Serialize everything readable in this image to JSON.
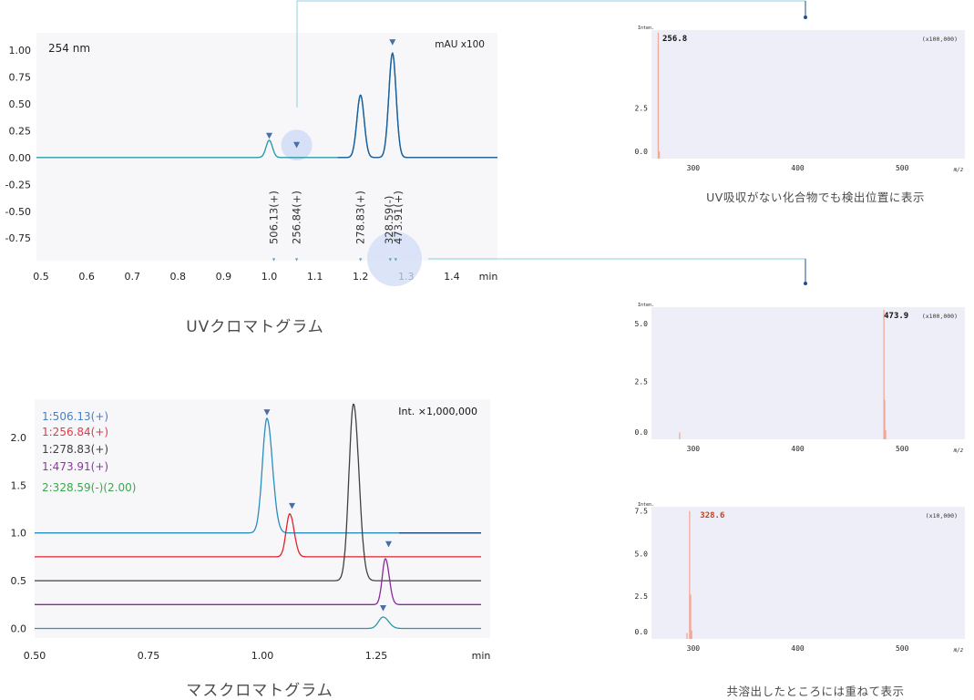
{
  "captions": {
    "uv": "UVクロマトグラム",
    "mass": "マスクロマトグラム",
    "ms_top": "UV吸収がない化合物でも検出位置に表示",
    "ms_bottom": "共溶出したところには重ねて表示"
  },
  "colors": {
    "uv_line": "#1f5f9a",
    "uv_line_light": "#2f9aa8",
    "marker": "#4a6fa5",
    "plot_bg": "#f7f7fa",
    "ms_bg": "#eeeef8",
    "ms_peak": "#f2a898",
    "ms_peak_label": "#c0461e",
    "highlight": "#d0dcf5",
    "connector": "#8fd0dc",
    "connector_dark": "#1f4f8a"
  },
  "chart_data": [
    {
      "id": "uv",
      "type": "line",
      "title": "UVクロマトグラム",
      "wavelength_label": "254 nm",
      "unit_label": "mAU x100",
      "xlim": [
        0.5,
        1.5
      ],
      "ylim": [
        -0.95,
        1.15
      ],
      "xticks": [
        0.5,
        0.6,
        0.7,
        0.8,
        0.9,
        1.0,
        1.1,
        1.2,
        1.3,
        1.4
      ],
      "xtick_labels": [
        "0.5",
        "0.6",
        "0.7",
        "0.8",
        "0.9",
        "1.0",
        "1.1",
        "1.2",
        "1.3",
        "1.4"
      ],
      "yticks": [
        1.0,
        0.75,
        0.5,
        0.25,
        0.0,
        -0.25,
        -0.5,
        -0.75
      ],
      "ytick_labels": [
        "1.00",
        "0.75",
        "0.50",
        "0.25",
        "0.00",
        "-0.25",
        "-0.50",
        "-0.75"
      ],
      "xunit": "min",
      "baseline": 0.0,
      "peaks": [
        {
          "x": 1.0,
          "height": 0.16,
          "width": 0.007
        },
        {
          "x": 1.2,
          "height": 0.58,
          "width": 0.008
        },
        {
          "x": 1.27,
          "height": 0.97,
          "width": 0.008
        }
      ],
      "peak_markers": [
        {
          "x": 1.0,
          "y": 0.2
        },
        {
          "x": 1.27,
          "y": 1.07
        },
        {
          "x": 1.06,
          "y": 0.115
        }
      ],
      "compound_labels": [
        {
          "text": "506.13(+)",
          "x": 1.01
        },
        {
          "text": "256.84(+)",
          "x": 1.06
        },
        {
          "text": "278.83(+)",
          "x": 1.2
        },
        {
          "text": "328.59(-)",
          "x": 1.262
        },
        {
          "text": "473.91(+)",
          "x": 1.282
        }
      ],
      "bottom_markers": [
        1.01,
        1.06,
        1.2,
        1.265,
        1.277
      ]
    },
    {
      "id": "mass",
      "type": "line",
      "title": "マスクロマトグラム",
      "unit_label": "Int. ×1,000,000",
      "xlim": [
        0.5,
        1.5
      ],
      "ylim": [
        -0.1,
        2.4
      ],
      "xticks": [
        0.5,
        0.75,
        1.0,
        1.25
      ],
      "xtick_labels": [
        "0.50",
        "0.75",
        "1.00",
        "1.25"
      ],
      "yticks": [
        2.0,
        1.5,
        1.0,
        0.5,
        0.0
      ],
      "ytick_labels": [
        "2.0",
        "1.5",
        "1.0",
        "0.5",
        "0.0"
      ],
      "xunit": "min",
      "series": [
        {
          "name": "1:506.13(+)",
          "color": "#2b8cbe",
          "label_color": "#4a7fc0",
          "baseline": 1.0,
          "end_color": "#1f3f7a",
          "peak_x": 1.01,
          "peak_h": 1.2,
          "width": 0.01
        },
        {
          "name": "1:256.84(+)",
          "color": "#e0202a",
          "label_color": "#e03a48",
          "baseline": 0.75,
          "peak_x": 1.06,
          "peak_h": 0.45,
          "width": 0.008
        },
        {
          "name": "1:278.83(+)",
          "color": "#404040",
          "label_color": "#404040",
          "baseline": 0.5,
          "peak_x": 1.2,
          "peak_h": 1.85,
          "width": 0.01
        },
        {
          "name": "1:473.91(+)",
          "color": "#8a2a9a",
          "label_color": "#8a3a9a",
          "baseline": 0.25,
          "peak_x": 1.27,
          "peak_h": 0.48,
          "width": 0.007
        },
        {
          "name": "2:328.59(-)(2.00)",
          "color": "#2a98a8",
          "label_color": "#3aa84a",
          "baseline": 0.0,
          "peak_x": 1.265,
          "peak_h": 0.12,
          "width": 0.01
        }
      ],
      "peak_markers": [
        {
          "x": 1.01,
          "y": 2.26
        },
        {
          "x": 1.065,
          "y": 1.28
        },
        {
          "x": 1.277,
          "y": 0.88
        },
        {
          "x": 1.265,
          "y": 0.21
        }
      ]
    },
    {
      "id": "ms1",
      "type": "bar",
      "y_title": "Inten.",
      "scale_label": "(x100,000)",
      "xlim": [
        260,
        560
      ],
      "ylim": [
        0,
        6.2
      ],
      "xticks": [
        300,
        400,
        500
      ],
      "xtick_labels": [
        "300",
        "400",
        "500"
      ],
      "yticks": [
        2.5,
        0.0
      ],
      "ytick_labels": [
        "2.5",
        "0.0"
      ],
      "xunit": "m/z",
      "peak_label": "256.8",
      "peak_label_x": 267,
      "peaks": [
        {
          "x": 266.5,
          "y": 6.2
        },
        {
          "x": 267.5,
          "y": 0.35
        }
      ]
    },
    {
      "id": "ms2",
      "type": "bar",
      "y_title": "Inten.",
      "scale_label": "(x100,000)",
      "xlim": [
        260,
        560
      ],
      "ylim": [
        0,
        5.6
      ],
      "xticks": [
        300,
        400,
        500
      ],
      "xtick_labels": [
        "300",
        "400",
        "500"
      ],
      "yticks": [
        5.0,
        2.5,
        0.0
      ],
      "ytick_labels": [
        "5.0",
        "2.5",
        "0.0"
      ],
      "xunit": "m/z",
      "peak_label": "473.9",
      "peak_label_x": 479,
      "peaks": [
        {
          "x": 287,
          "y": 0.3
        },
        {
          "x": 482.5,
          "y": 5.6
        },
        {
          "x": 483.3,
          "y": 1.7
        },
        {
          "x": 484.2,
          "y": 0.4
        }
      ]
    },
    {
      "id": "ms3",
      "type": "bar",
      "y_title": "Inten.",
      "scale_label": "(x10,000)",
      "xlim": [
        260,
        560
      ],
      "ylim": [
        0,
        7.6
      ],
      "xticks": [
        300,
        400,
        500
      ],
      "xtick_labels": [
        "300",
        "400",
        "500"
      ],
      "yticks": [
        7.5,
        5.0,
        2.5,
        0.0
      ],
      "ytick_labels": [
        "7.5",
        "5.0",
        "2.5",
        "0.0"
      ],
      "xunit": "m/z",
      "peak_label": "328.6",
      "peak_label_x": 303,
      "peaks": [
        {
          "x": 294,
          "y": 0.35
        },
        {
          "x": 296.5,
          "y": 7.5
        },
        {
          "x": 297.5,
          "y": 2.6
        },
        {
          "x": 298.5,
          "y": 0.5
        }
      ]
    }
  ]
}
